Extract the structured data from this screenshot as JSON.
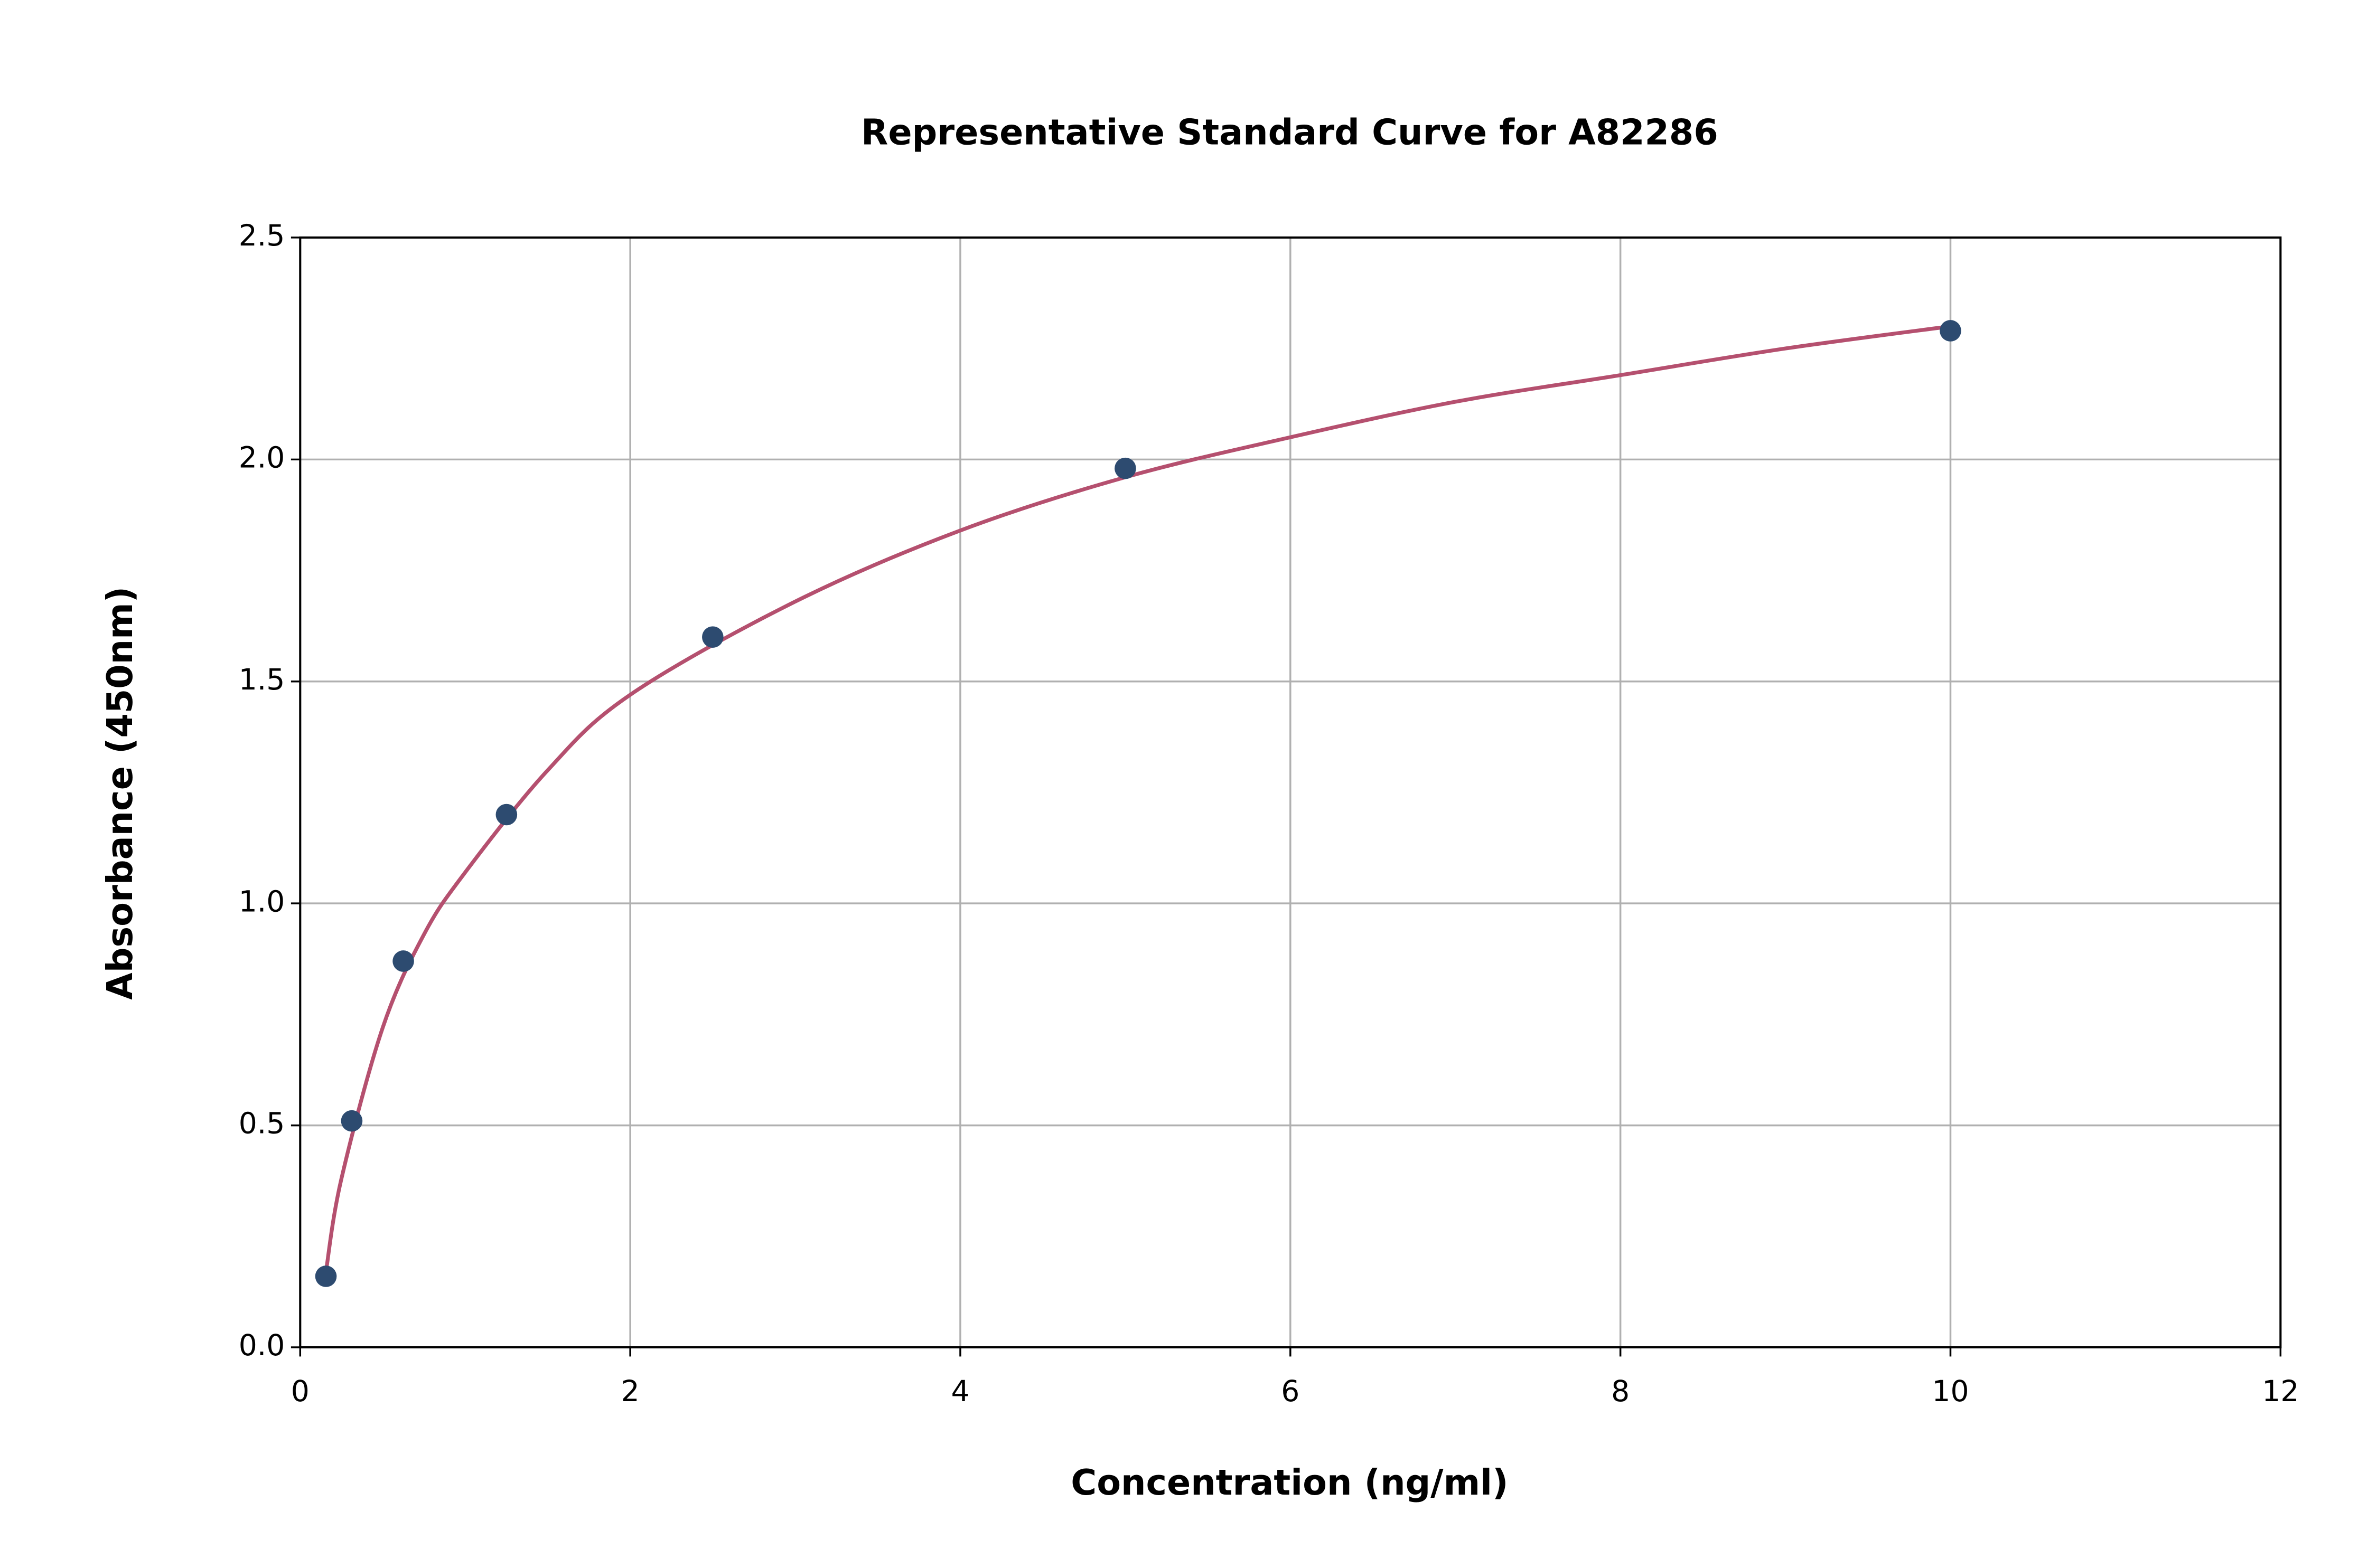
{
  "chart_data": {
    "type": "scatter",
    "title": "Representative Standard Curve for A82286",
    "x_label": "Concentration (ng/ml)",
    "y_label": "Absorbance (450nm)",
    "xlim": [
      0,
      12
    ],
    "xticks": [
      0,
      2,
      4,
      6,
      8,
      10,
      12
    ],
    "ylim": [
      0,
      2.5
    ],
    "yticks": [
      {
        "value": 0,
        "label": "0.0"
      },
      0.5,
      {
        "value": 1,
        "label": "1.0"
      },
      1.5,
      {
        "value": 2,
        "label": "2.0"
      },
      2.5
    ],
    "grid": true,
    "series": [
      {
        "type": "scatter",
        "color": "#2d4b70",
        "x": [
          0.156,
          0.3125,
          0.625,
          1.25,
          2.5,
          5,
          10
        ],
        "values": [
          0.16,
          0.51,
          0.87,
          1.2,
          1.6,
          1.98,
          2.29
        ]
      },
      {
        "type": "line",
        "color": "#b5506f",
        "x": [
          0.156,
          0.25,
          0.5,
          0.75,
          1,
          1.5,
          2,
          3,
          4,
          5,
          6,
          7,
          8,
          9,
          10
        ],
        "values": [
          0.17,
          0.38,
          0.72,
          0.93,
          1.07,
          1.3,
          1.47,
          1.68,
          1.84,
          1.96,
          2.05,
          2.13,
          2.19,
          2.25,
          2.3
        ]
      }
    ]
  }
}
